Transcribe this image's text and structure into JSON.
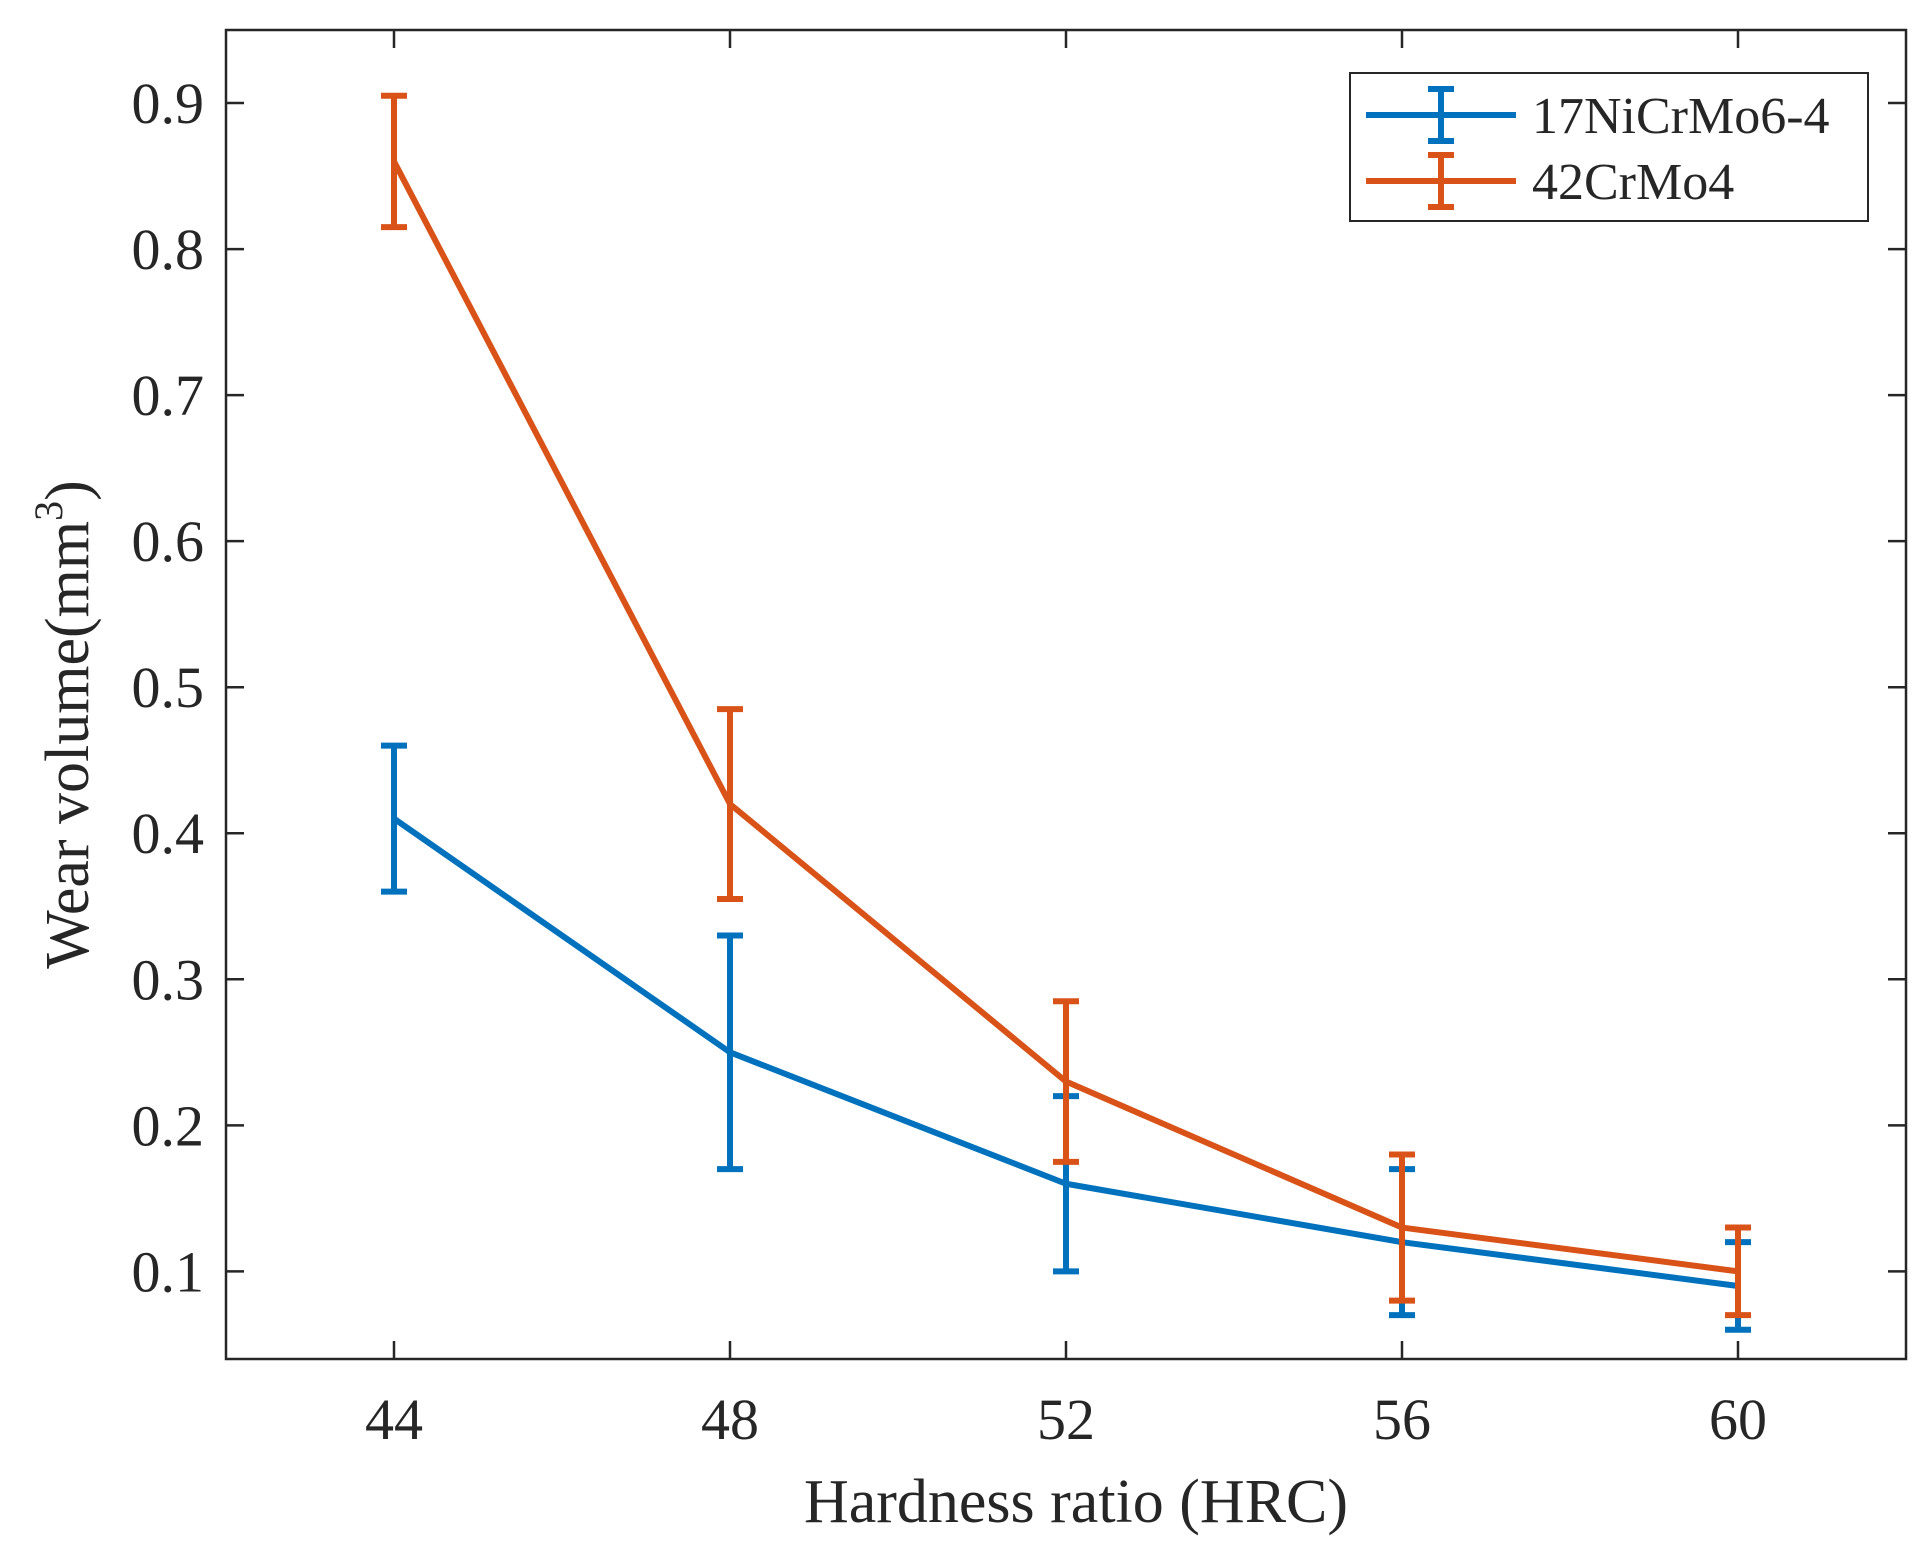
{
  "chart_data": {
    "type": "line",
    "title": "",
    "xlabel": "Hardness ratio (HRC)",
    "ylabel": "Wear volume(mm",
    "ylabel_superscript": "3",
    "ylabel_suffix": ")",
    "x": [
      44,
      48,
      52,
      56,
      60
    ],
    "xlim": [
      42,
      62
    ],
    "ylim": [
      0.04,
      0.95
    ],
    "xticks": [
      "44",
      "48",
      "52",
      "56",
      "60"
    ],
    "yticks": [
      "0.1",
      "0.2",
      "0.3",
      "0.4",
      "0.5",
      "0.6",
      "0.7",
      "0.8",
      "0.9"
    ],
    "grid": false,
    "legend_position": "top-right",
    "series": [
      {
        "name": "17NiCrMo6-4",
        "color": "#0072BD",
        "values": [
          0.41,
          0.25,
          0.16,
          0.12,
          0.09
        ],
        "err_low": [
          0.36,
          0.17,
          0.1,
          0.07,
          0.06
        ],
        "err_high": [
          0.46,
          0.33,
          0.22,
          0.17,
          0.12
        ]
      },
      {
        "name": "42CrMo4",
        "color": "#D95319",
        "values": [
          0.86,
          0.42,
          0.23,
          0.13,
          0.1
        ],
        "err_low": [
          0.815,
          0.355,
          0.175,
          0.08,
          0.07
        ],
        "err_high": [
          0.905,
          0.485,
          0.285,
          0.18,
          0.13
        ]
      }
    ]
  }
}
